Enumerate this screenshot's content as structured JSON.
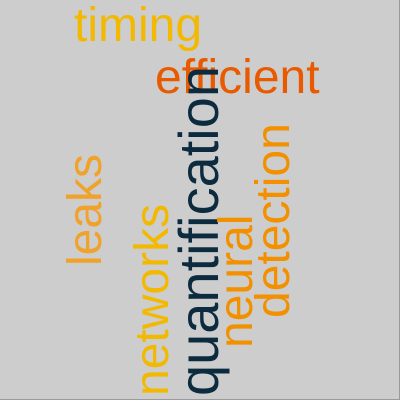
{
  "words": {
    "timing": {
      "text": "timing",
      "color": "#f3b800"
    },
    "efficient": {
      "text": "efficient",
      "color": "#e85a00"
    },
    "leaks": {
      "text": "leaks",
      "color": "#f0a22a"
    },
    "networks": {
      "text": "networks",
      "color": "#f3b800"
    },
    "quantification": {
      "text": "quantification",
      "color": "#0d2b3e"
    },
    "neural": {
      "text": "neural",
      "color": "#f29000"
    },
    "detection": {
      "text": "detection",
      "color": "#f29000"
    }
  },
  "background_color": "#cdcdcd"
}
